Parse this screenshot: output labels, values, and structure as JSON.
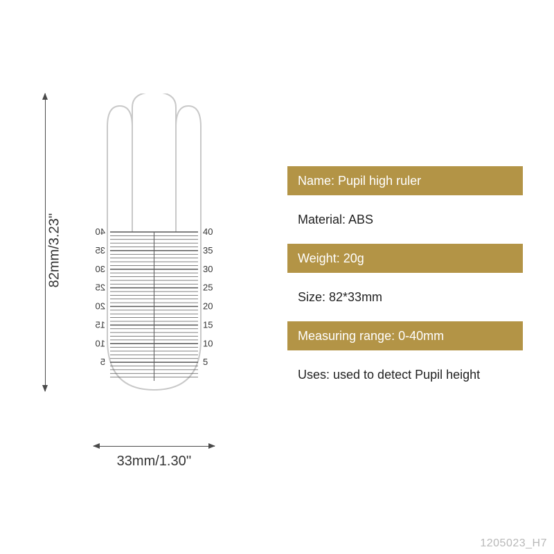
{
  "dimensions": {
    "height_label": "82mm/3.23''",
    "width_label": "33mm/1.30''"
  },
  "ruler": {
    "outline_color": "#c8c8c8",
    "tick_color": "#555555",
    "number_color": "#333333",
    "major_ticks": [
      40,
      35,
      30,
      25,
      20,
      15,
      10,
      5
    ],
    "range_min": 0,
    "range_max": 40,
    "number_fontsize": 13
  },
  "specs": [
    {
      "text": "Name: Pupil high ruler",
      "highlight": true
    },
    {
      "text": "Material: ABS",
      "highlight": false
    },
    {
      "text": "Weight: 20g",
      "highlight": true
    },
    {
      "text": "Size: 82*33mm",
      "highlight": false
    },
    {
      "text": "Measuring range: 0-40mm",
      "highlight": true
    },
    {
      "text": "Uses: used to detect Pupil height",
      "highlight": false
    }
  ],
  "colors": {
    "gold": "#b39446",
    "text_dark": "#222222",
    "text_light": "#ffffff",
    "dim_line": "#4a4a4a",
    "background": "#ffffff"
  },
  "watermark": "1205023_H7"
}
